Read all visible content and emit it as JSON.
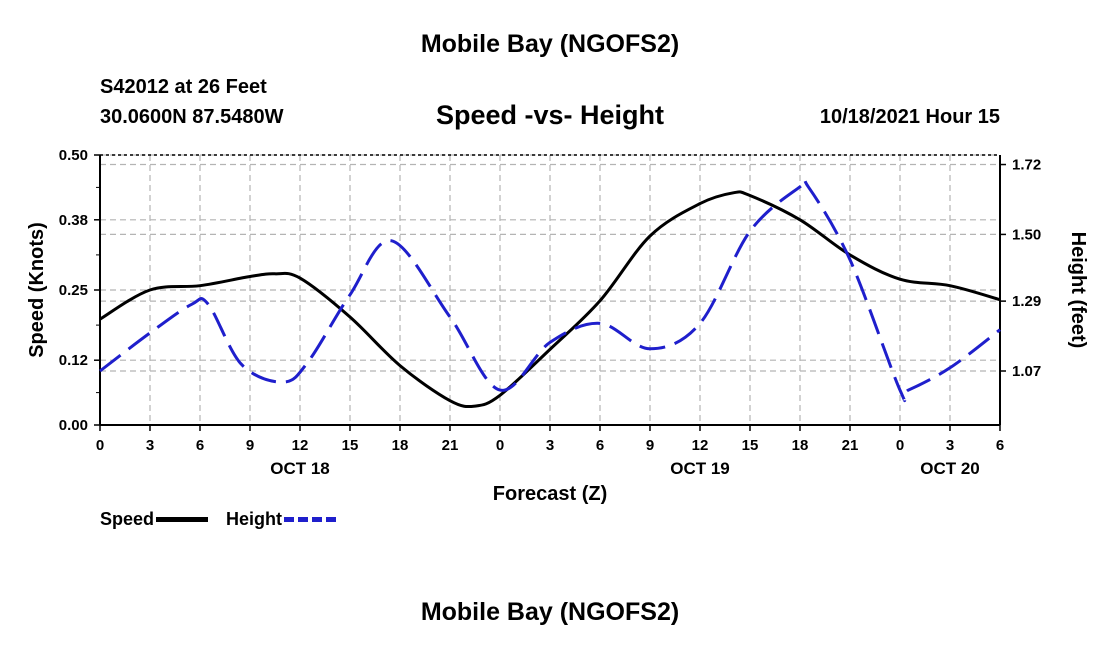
{
  "header": {
    "title": "Mobile Bay (NGOFS2)",
    "station": "S42012 at 26 Feet",
    "coords": "30.0600N  87.5480W",
    "datetime": "10/18/2021 Hour 15"
  },
  "footer": {
    "title": "Mobile Bay (NGOFS2)"
  },
  "legend": {
    "speed_label": "Speed",
    "height_label": "Height"
  },
  "colors": {
    "speed": "#000000",
    "height": "#1f1fcc",
    "grid": "#b4b4b4"
  },
  "chart_data": {
    "type": "line",
    "title": "Speed -vs- Height",
    "xlabel": "Forecast (Z)",
    "ylabel": "Speed (Knots)",
    "y2label": "Height (feet)",
    "xlim": [
      0,
      54
    ],
    "ylim": [
      0,
      0.5
    ],
    "y2lim": [
      0.9,
      1.75
    ],
    "yticks": [
      0.0,
      0.12,
      0.25,
      0.38,
      0.5
    ],
    "ytick_labels": [
      "0.00",
      "0.12",
      "0.25",
      "0.38",
      "0.50"
    ],
    "y2ticks": [
      1.07,
      1.29,
      1.5,
      1.72
    ],
    "y2tick_labels": [
      "1.07",
      "1.29",
      "1.50",
      "1.72"
    ],
    "xticks": [
      0,
      3,
      6,
      9,
      12,
      15,
      18,
      21,
      24,
      27,
      30,
      33,
      36,
      39,
      42,
      45,
      48,
      51,
      54
    ],
    "xtick_labels": [
      "0",
      "3",
      "6",
      "9",
      "12",
      "15",
      "18",
      "21",
      "0",
      "3",
      "6",
      "9",
      "12",
      "15",
      "18",
      "21",
      "0",
      "3",
      "6"
    ],
    "day_labels": [
      {
        "x": 12,
        "label": "OCT 18"
      },
      {
        "x": 36,
        "label": "OCT 19"
      },
      {
        "x": 51,
        "label": "OCT 20"
      }
    ],
    "grid": true,
    "series": [
      {
        "name": "Speed",
        "axis": "left",
        "x": [
          0,
          3,
          6,
          9,
          10.5,
          12,
          15,
          18,
          21,
          22.5,
          24,
          27,
          30,
          33,
          36,
          38,
          39,
          42,
          45,
          48,
          51,
          54
        ],
        "values": [
          0.196,
          0.25,
          0.258,
          0.275,
          0.28,
          0.272,
          0.2,
          0.11,
          0.045,
          0.035,
          0.055,
          0.14,
          0.23,
          0.35,
          0.41,
          0.43,
          0.425,
          0.38,
          0.315,
          0.27,
          0.258,
          0.232
        ]
      },
      {
        "name": "Height",
        "axis": "right",
        "x": [
          0,
          3,
          5.5,
          6.5,
          8.5,
          11,
          12.5,
          15,
          17.5,
          21,
          24,
          27,
          30,
          33,
          36,
          39,
          42,
          42.5,
          45,
          48,
          48.5,
          51,
          54
        ],
        "values": [
          1.07,
          1.19,
          1.28,
          1.28,
          1.09,
          1.035,
          1.1,
          1.31,
          1.48,
          1.24,
          1.01,
          1.16,
          1.22,
          1.14,
          1.22,
          1.51,
          1.65,
          1.65,
          1.42,
          1.01,
          1.01,
          1.08,
          1.2
        ]
      }
    ]
  }
}
